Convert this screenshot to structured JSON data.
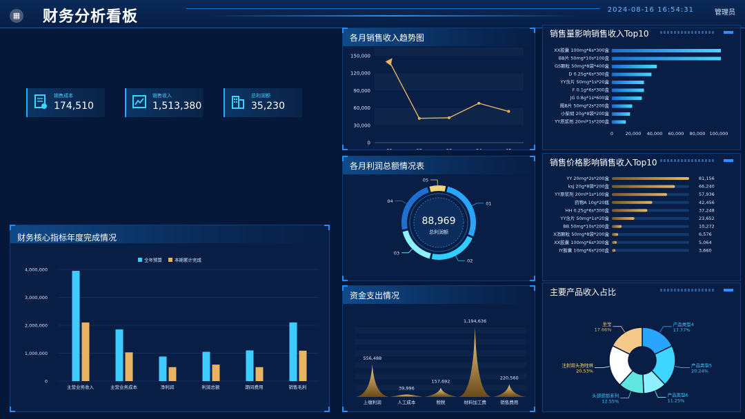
{
  "header": {
    "menu_icon": "grid-icon",
    "title": "财务分析看板",
    "datetime": "2024-08-16 16:54:31",
    "user": "管理员"
  },
  "kpis": [
    {
      "label": "销售成本",
      "value": "174,510",
      "icon": "document-chart-icon"
    },
    {
      "label": "销售收入",
      "value": "1,513,380",
      "icon": "line-chart-icon"
    },
    {
      "label": "总利润额",
      "value": "35,230",
      "icon": "building-icon"
    }
  ],
  "panels": {
    "monthly_revenue": "各月销售收入趋势图",
    "sales_top10": "销售量影响销售收入Top10",
    "profit_ring": "各月利润总额情况表",
    "price_top10": "销售价格影响销售收入Top10",
    "core_index": "财务核心指标年度完成情况",
    "expense": "资金支出情况",
    "product_share": "主要产品收入占比"
  },
  "colors": {
    "accent": "#2c8ef0",
    "cyan": "#3ecbff",
    "gold": "#e8b464",
    "background": "#06183a"
  },
  "chart_data": [
    {
      "id": "monthly_revenue",
      "type": "line",
      "x": [
        "01",
        "02",
        "03",
        "04",
        "05"
      ],
      "series": [
        {
          "values": [
            140000,
            42000,
            43000,
            68000,
            54000
          ]
        }
      ],
      "yticks": [
        "0",
        "30,000",
        "60,000",
        "90,000",
        "120,000",
        "150,000"
      ],
      "ylim": [
        0,
        150000
      ]
    },
    {
      "id": "sales_top10",
      "type": "bar",
      "orientation": "horizontal",
      "categories": [
        "XX胶囊 100mg*6s*300盒",
        "BB片 50mg*10s*100盒",
        "GS颗粒 50mg*8袋*400盒",
        "D 0.25g*6s*300盒",
        "YY含片 50mg*1s*20盒",
        "F 0.1g*6s*300盒",
        "JG 0.8g*1s*600盒",
        "图B片 50mg*2s*200盒",
        "小柴胡 20g*8袋*200盒",
        "YY原浆剂 20ml*1s*200盒"
      ],
      "values": [
        102000,
        102000,
        42000,
        37000,
        30000,
        30000,
        28000,
        19000,
        17000,
        13000
      ],
      "xticks": [
        "0",
        "20,000",
        "40,000",
        "60,000",
        "80,000",
        "100,000"
      ],
      "xlim": [
        0,
        100000
      ]
    },
    {
      "id": "profit_ring",
      "type": "pie",
      "center_value": "88,969",
      "center_label": "总利润额",
      "labels": [
        "01",
        "02",
        "03",
        "04",
        "05"
      ],
      "values": [
        28,
        22,
        18,
        24,
        8
      ]
    },
    {
      "id": "price_top10",
      "type": "bar",
      "orientation": "horizontal",
      "categories": [
        "YY 20mg*2s*200盒",
        "ksj 20g*8袋*200盒",
        "YY原浆剂 20ml*1s*100盒",
        "药物A 10g*20瓶",
        "HH 0.25g*6s*300盒",
        "YY含片 50mg*1s*20盒",
        "BB 50mg*10s*200盒",
        "X消颗粒 50mg*8袋*200盒",
        "XX胶囊 100mg*6s*300盒",
        "IY胶囊 10mg*6s*200盒"
      ],
      "values": [
        81156,
        66240,
        57936,
        42456,
        37248,
        23652,
        10272,
        6576,
        5064,
        3660
      ],
      "labels": [
        "81,156",
        "66,240",
        "57,936",
        "42,456",
        "37,248",
        "23,652",
        "10,272",
        "6,576",
        "5,064",
        "3,660"
      ],
      "xlim": [
        0,
        81156
      ]
    },
    {
      "id": "core_index",
      "type": "bar",
      "categories": [
        "主营业务收入",
        "主营业务成本",
        "净利润",
        "利润总额",
        "期间费用",
        "销售毛利"
      ],
      "series": [
        {
          "name": "全年预算",
          "values": [
            3950000,
            1850000,
            880000,
            1050000,
            1100000,
            2100000
          ]
        },
        {
          "name": "本期累计完成",
          "values": [
            2100000,
            1030000,
            500000,
            590000,
            500000,
            1090000
          ]
        }
      ],
      "yticks": [
        "0",
        "1,000,000",
        "2,000,000",
        "3,000,000",
        "4,000,000"
      ],
      "ylim": [
        0,
        4000000
      ],
      "legend": "top-center"
    },
    {
      "id": "expense",
      "type": "area",
      "categories": [
        "上缴利润",
        "人工成本",
        "税税",
        "材料加工费",
        "销售费用"
      ],
      "values": [
        556488,
        39996,
        157692,
        1194636,
        220560
      ],
      "labels": [
        "556,488",
        "39,996",
        "157,692",
        "1,194,636",
        "220,560"
      ],
      "ylim": [
        0,
        1194636
      ]
    },
    {
      "id": "product_share",
      "type": "pie",
      "labels": [
        "产品类型4",
        "产品类型5",
        "产品类型6",
        "头颈颈部系列",
        "注射用头孢唑林",
        "金宝"
      ],
      "values": [
        17.77,
        20.24,
        11.25,
        12.55,
        20.53,
        17.66
      ],
      "percents": [
        "17.77%",
        "20.24%",
        "11.25%",
        "12.55%",
        "20.53%",
        "17.66%"
      ]
    }
  ]
}
